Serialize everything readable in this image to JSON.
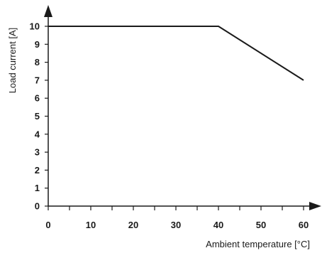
{
  "chart_data": {
    "type": "line",
    "xlabel": "Ambient temperature [°C]",
    "ylabel": "Load current [A]",
    "xlim": [
      0,
      60
    ],
    "ylim": [
      0,
      10
    ],
    "x_ticks": [
      0,
      10,
      20,
      30,
      40,
      50,
      60
    ],
    "y_ticks": [
      0,
      1,
      2,
      3,
      4,
      5,
      6,
      7,
      8,
      9,
      10
    ],
    "grid": false,
    "series": [
      {
        "x": [
          0,
          40,
          60
        ],
        "y": [
          10,
          10,
          7
        ]
      }
    ],
    "colors": {
      "line": "#1a1a1a",
      "axis": "#1a1a1a"
    }
  }
}
